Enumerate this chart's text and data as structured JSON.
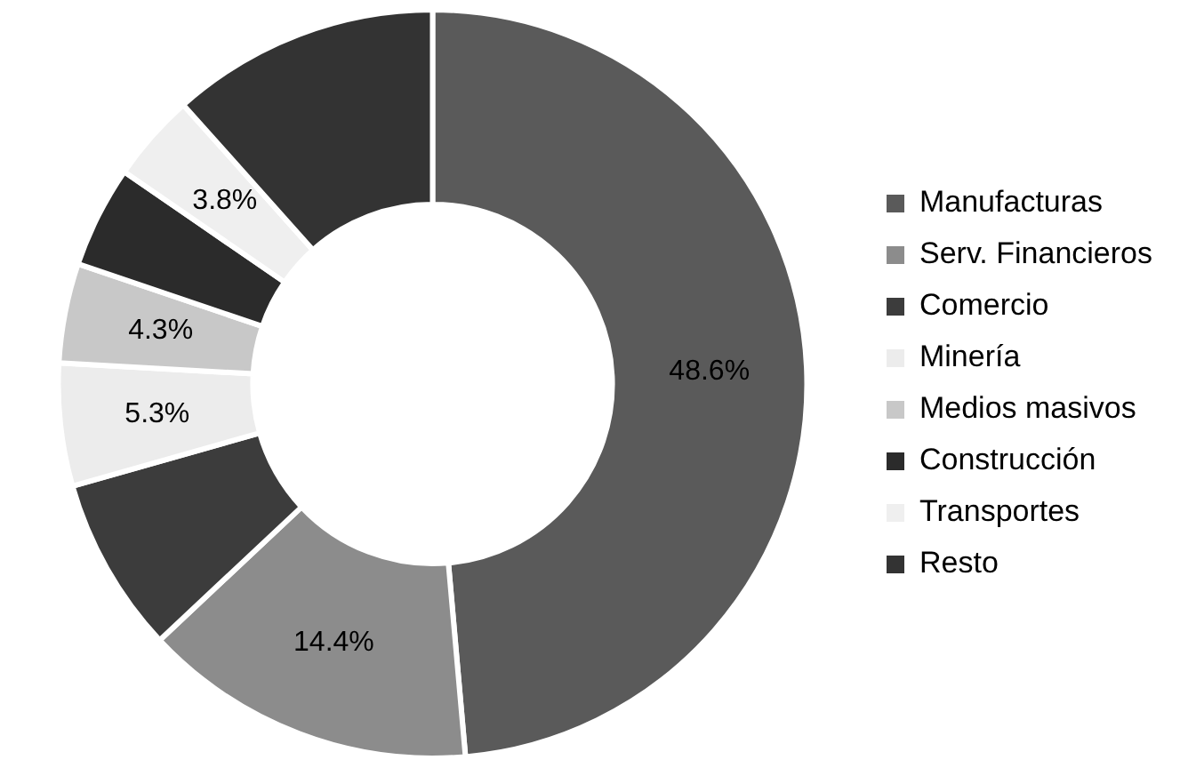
{
  "chart_data": {
    "type": "donut",
    "categories": [
      "Manufacturas",
      "Serv. Financieros",
      "Comercio",
      "Minería",
      "Medios masivos",
      "Construcción",
      "Transportes",
      "Resto"
    ],
    "values": [
      48.6,
      14.4,
      7.6,
      5.3,
      4.3,
      4.4,
      3.8,
      11.6
    ],
    "colors": [
      "#5a5a5a",
      "#8c8c8c",
      "#3c3c3c",
      "#ececec",
      "#c8c8c8",
      "#2b2b2b",
      "#efefef",
      "#333333"
    ],
    "value_labels": [
      "48.6%",
      "14.4%",
      null,
      "5.3%",
      "4.3%",
      null,
      "3.8%",
      null
    ],
    "legend": "right"
  }
}
